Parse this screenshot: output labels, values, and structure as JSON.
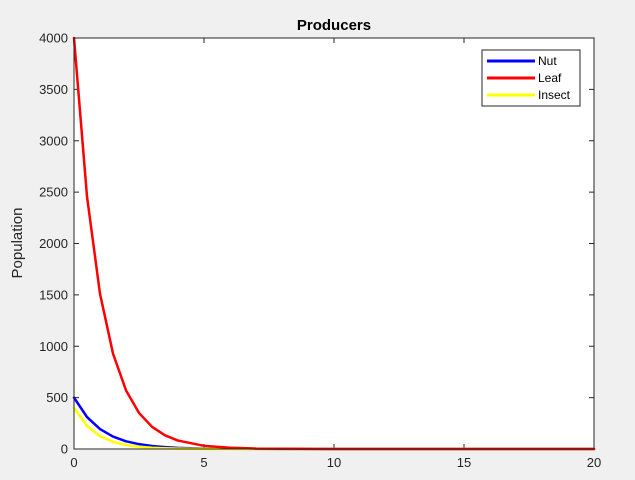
{
  "chart_data": {
    "type": "line",
    "title": "Producers",
    "xlabel": "",
    "ylabel": "Population",
    "xlim": [
      0,
      20
    ],
    "ylim": [
      0,
      4000
    ],
    "xticks": [
      0,
      5,
      10,
      15,
      20
    ],
    "yticks": [
      0,
      500,
      1000,
      1500,
      2000,
      2500,
      3000,
      3500,
      4000
    ],
    "grid": false,
    "legend_position": "top-right",
    "x": [
      0,
      0.5,
      1,
      1.5,
      2,
      2.5,
      3,
      3.5,
      4,
      5,
      6,
      7,
      8,
      10,
      12,
      15,
      20
    ],
    "series": [
      {
        "name": "Nut",
        "color": "#0000ff",
        "values": [
          500,
          311,
          194,
          121,
          75,
          47,
          29,
          18,
          11,
          4,
          2,
          1,
          0,
          0,
          0,
          0,
          0
        ]
      },
      {
        "name": "Leaf",
        "color": "#ff0000",
        "values": [
          4000,
          2458,
          1511,
          929,
          571,
          351,
          216,
          133,
          82,
          31,
          12,
          4,
          2,
          0,
          0,
          0,
          0
        ]
      },
      {
        "name": "Insect",
        "color": "#ffff00",
        "values": [
          400,
          224,
          125,
          70,
          39,
          22,
          12,
          7,
          4,
          1,
          0,
          0,
          0,
          0,
          0,
          0,
          0
        ]
      }
    ]
  }
}
